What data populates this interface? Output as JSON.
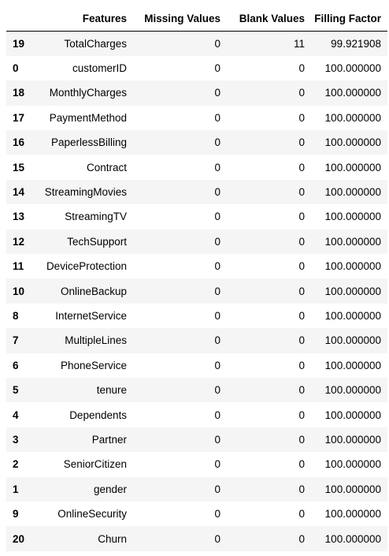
{
  "table": {
    "columns": {
      "index": "",
      "features": "Features",
      "missing": "Missing Values",
      "blank": "Blank Values",
      "filling": "Filling Factor"
    },
    "rows": [
      {
        "index": "19",
        "features": "TotalCharges",
        "missing": "0",
        "blank": "11",
        "filling": "99.921908"
      },
      {
        "index": "0",
        "features": "customerID",
        "missing": "0",
        "blank": "0",
        "filling": "100.000000"
      },
      {
        "index": "18",
        "features": "MonthlyCharges",
        "missing": "0",
        "blank": "0",
        "filling": "100.000000"
      },
      {
        "index": "17",
        "features": "PaymentMethod",
        "missing": "0",
        "blank": "0",
        "filling": "100.000000"
      },
      {
        "index": "16",
        "features": "PaperlessBilling",
        "missing": "0",
        "blank": "0",
        "filling": "100.000000"
      },
      {
        "index": "15",
        "features": "Contract",
        "missing": "0",
        "blank": "0",
        "filling": "100.000000"
      },
      {
        "index": "14",
        "features": "StreamingMovies",
        "missing": "0",
        "blank": "0",
        "filling": "100.000000"
      },
      {
        "index": "13",
        "features": "StreamingTV",
        "missing": "0",
        "blank": "0",
        "filling": "100.000000"
      },
      {
        "index": "12",
        "features": "TechSupport",
        "missing": "0",
        "blank": "0",
        "filling": "100.000000"
      },
      {
        "index": "11",
        "features": "DeviceProtection",
        "missing": "0",
        "blank": "0",
        "filling": "100.000000"
      },
      {
        "index": "10",
        "features": "OnlineBackup",
        "missing": "0",
        "blank": "0",
        "filling": "100.000000"
      },
      {
        "index": "8",
        "features": "InternetService",
        "missing": "0",
        "blank": "0",
        "filling": "100.000000"
      },
      {
        "index": "7",
        "features": "MultipleLines",
        "missing": "0",
        "blank": "0",
        "filling": "100.000000"
      },
      {
        "index": "6",
        "features": "PhoneService",
        "missing": "0",
        "blank": "0",
        "filling": "100.000000"
      },
      {
        "index": "5",
        "features": "tenure",
        "missing": "0",
        "blank": "0",
        "filling": "100.000000"
      },
      {
        "index": "4",
        "features": "Dependents",
        "missing": "0",
        "blank": "0",
        "filling": "100.000000"
      },
      {
        "index": "3",
        "features": "Partner",
        "missing": "0",
        "blank": "0",
        "filling": "100.000000"
      },
      {
        "index": "2",
        "features": "SeniorCitizen",
        "missing": "0",
        "blank": "0",
        "filling": "100.000000"
      },
      {
        "index": "1",
        "features": "gender",
        "missing": "0",
        "blank": "0",
        "filling": "100.000000"
      },
      {
        "index": "9",
        "features": "OnlineSecurity",
        "missing": "0",
        "blank": "0",
        "filling": "100.000000"
      },
      {
        "index": "20",
        "features": "Churn",
        "missing": "0",
        "blank": "0",
        "filling": "100.000000"
      }
    ]
  },
  "colors": {
    "striped_row": "#f5f5f5",
    "plain_row": "#ffffff",
    "header_rule": "#000000",
    "text": "#000000"
  }
}
